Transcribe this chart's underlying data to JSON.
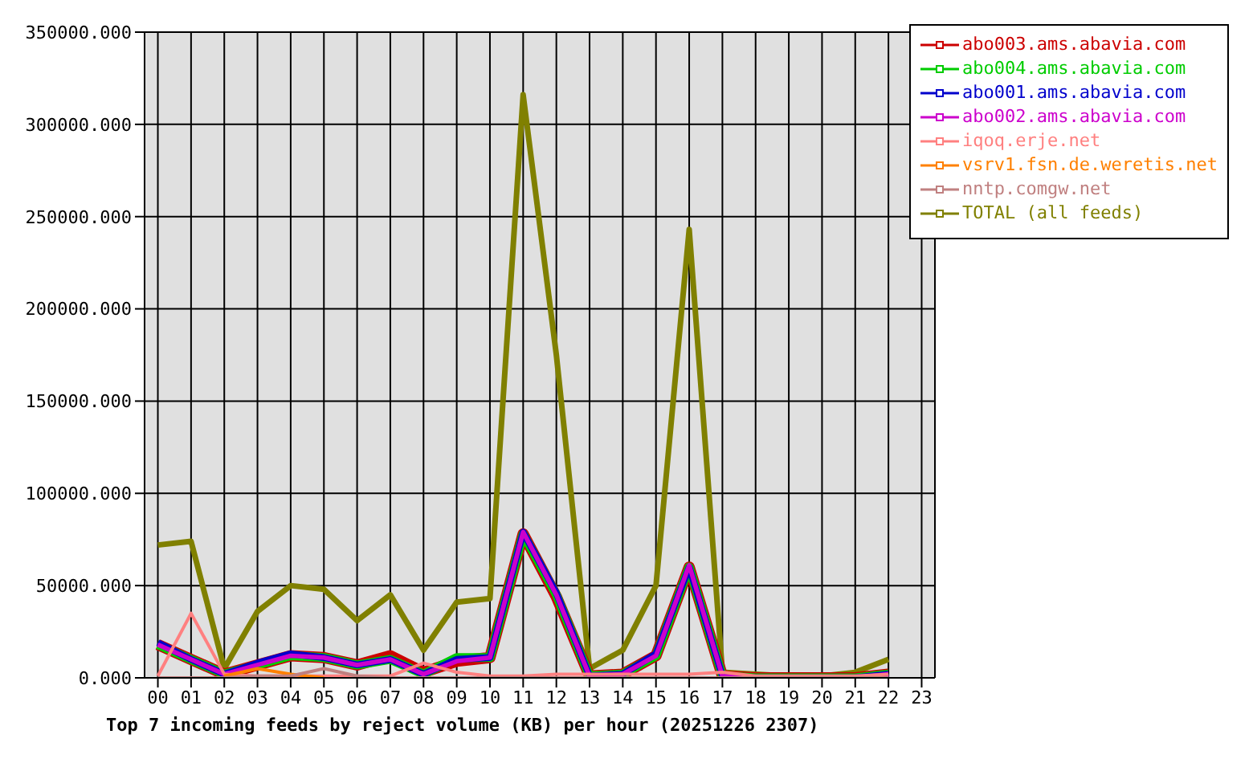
{
  "chart_data": {
    "type": "line",
    "xlabel": "Top 7 incoming feeds by reject volume (KB) per hour (20251226 2307)",
    "categories": [
      "00",
      "01",
      "02",
      "03",
      "04",
      "05",
      "06",
      "07",
      "08",
      "09",
      "10",
      "11",
      "12",
      "13",
      "14",
      "15",
      "16",
      "17",
      "18",
      "19",
      "20",
      "21",
      "22",
      "23"
    ],
    "series": [
      {
        "name": "abo003.ams.abavia.com",
        "color": "#cc0000",
        "values": [
          18000,
          10000,
          2000,
          7000,
          12000,
          11000,
          7000,
          12000,
          3000,
          9000,
          11000,
          78000,
          44000,
          1000,
          2000,
          12000,
          60000,
          1000,
          0,
          0,
          0,
          0,
          2000,
          null
        ]
      },
      {
        "name": "abo004.ams.abavia.com",
        "color": "#00cc00",
        "values": [
          18000,
          10000,
          2000,
          7000,
          12000,
          11000,
          7000,
          10000,
          2000,
          11000,
          11000,
          78000,
          45000,
          1000,
          2000,
          12000,
          60000,
          1000,
          0,
          0,
          0,
          0,
          2000,
          null
        ]
      },
      {
        "name": "abo001.ams.abavia.com",
        "color": "#0000cc",
        "values": [
          19000,
          10000,
          2000,
          8000,
          13000,
          11000,
          7000,
          10000,
          2000,
          10000,
          11000,
          79000,
          46000,
          1000,
          2000,
          13000,
          60000,
          1000,
          0,
          0,
          0,
          0,
          2000,
          null
        ]
      },
      {
        "name": "abo002.ams.abavia.com",
        "color": "#cc00cc",
        "values": [
          18000,
          10000,
          2000,
          7000,
          12000,
          11000,
          7000,
          10000,
          2000,
          9000,
          11000,
          79000,
          45000,
          1000,
          2000,
          12000,
          61000,
          1000,
          0,
          0,
          0,
          0,
          2000,
          null
        ]
      },
      {
        "name": "iqoq.erje.net",
        "color": "#ff8080",
        "values": [
          1000,
          35000,
          2000,
          1000,
          1000,
          1000,
          1000,
          1000,
          8000,
          3000,
          1000,
          1000,
          2000,
          2000,
          2000,
          2000,
          2000,
          3000,
          1000,
          1000,
          1000,
          1000,
          2000,
          null
        ]
      },
      {
        "name": "vsrv1.fsn.de.weretis.net",
        "color": "#ff8000",
        "values": [
          null,
          null,
          1000,
          5000,
          2000,
          0,
          null,
          null,
          null,
          null,
          null,
          null,
          null,
          null,
          null,
          null,
          null,
          null,
          null,
          null,
          null,
          null,
          null,
          null
        ]
      },
      {
        "name": "nntp.comgw.net",
        "color": "#c08080",
        "values": [
          0,
          0,
          0,
          1000,
          1000,
          5000,
          1000,
          0,
          0,
          0,
          0,
          0,
          0,
          0,
          0,
          0,
          0,
          0,
          0,
          0,
          0,
          0,
          0,
          null
        ]
      },
      {
        "name": "TOTAL (all feeds)",
        "color": "#808000",
        "values": [
          72000,
          74000,
          5000,
          36000,
          50000,
          48000,
          31000,
          45000,
          15000,
          41000,
          43000,
          316000,
          175000,
          5000,
          15000,
          50000,
          243000,
          3000,
          2000,
          1000,
          1000,
          3000,
          10000,
          null
        ]
      }
    ],
    "ylim": [
      0,
      350000
    ],
    "yticks": [
      {
        "value": 0,
        "label": "0.000"
      },
      {
        "value": 50000,
        "label": "50000.000"
      },
      {
        "value": 100000,
        "label": "100000.000"
      },
      {
        "value": 150000,
        "label": "150000.000"
      },
      {
        "value": 200000,
        "label": "200000.000"
      },
      {
        "value": 250000,
        "label": "250000.000"
      },
      {
        "value": 300000,
        "label": "300000.000"
      },
      {
        "value": 350000,
        "label": "350000.000"
      }
    ],
    "grid": true,
    "legend": "top right",
    "marker": "none",
    "line_style": "solid"
  }
}
